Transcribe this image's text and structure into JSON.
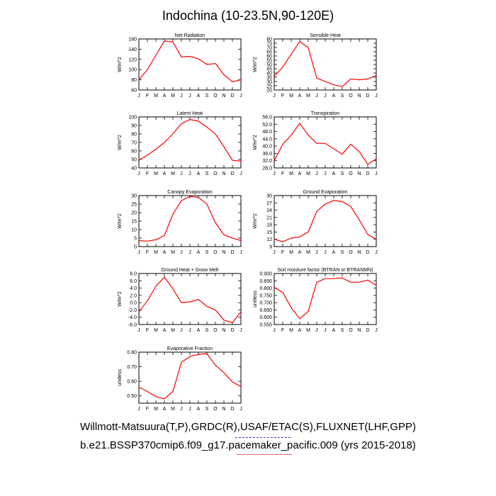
{
  "title": "Indochina (10-23.5N,90-120E)",
  "footer": {
    "line1": "Willmott-Matsuura(T,P),GRDC(R),USAF/ETAC(S),FLUXNET(LHF,GPP)",
    "line2": "b.e21.BSSP370cmip6.f09_g17.pacemaker_pacific.009 (yrs 2015-2018)"
  },
  "colors": {
    "series": "#ff0000",
    "axis": "#000000"
  },
  "chart_data": [
    {
      "type": "line",
      "title": "Net Radiation",
      "ylabel": "W/m^2",
      "categories": [
        "J",
        "F",
        "M",
        "A",
        "M",
        "J",
        "J",
        "A",
        "S",
        "O",
        "N",
        "D",
        "J"
      ],
      "ylim": [
        60,
        160
      ],
      "yticks": [
        60,
        80,
        100,
        120,
        140,
        160
      ],
      "yticklabels": [
        "60",
        "80",
        "100",
        "120",
        "140",
        "160"
      ],
      "values": [
        80,
        100,
        128,
        156,
        154,
        125,
        126,
        121,
        110,
        112,
        90,
        76,
        80
      ]
    },
    {
      "type": "line",
      "title": "Sensible Heat",
      "ylabel": "W/m^2",
      "categories": [
        "J",
        "F",
        "M",
        "A",
        "M",
        "J",
        "J",
        "A",
        "S",
        "O",
        "N",
        "D",
        "J"
      ],
      "ylim": [
        20,
        80
      ],
      "yticks": [
        20,
        25,
        30,
        35,
        40,
        45,
        50,
        55,
        60,
        65,
        70,
        75,
        80
      ],
      "yticklabels": [
        "20",
        "25",
        "30",
        "35",
        "40",
        "45",
        "50",
        "55",
        "60",
        "65",
        "70",
        "75",
        "80"
      ],
      "values": [
        36,
        47,
        62,
        77,
        70,
        34,
        30,
        26,
        24,
        33,
        32,
        33,
        37
      ]
    },
    {
      "type": "line",
      "title": "Latent Heat",
      "ylabel": "W/m^2",
      "categories": [
        "J",
        "F",
        "M",
        "A",
        "M",
        "J",
        "J",
        "A",
        "S",
        "O",
        "N",
        "D",
        "J"
      ],
      "ylim": [
        40,
        100
      ],
      "yticks": [
        40,
        50,
        60,
        70,
        80,
        90,
        100
      ],
      "yticklabels": [
        "40",
        "50",
        "60",
        "70",
        "80",
        "90",
        "100"
      ],
      "values": [
        49,
        55,
        62,
        70,
        80,
        92,
        97,
        95,
        88,
        80,
        65,
        49,
        48
      ]
    },
    {
      "type": "line",
      "title": "Transpiration",
      "ylabel": "W/m^2",
      "categories": [
        "J",
        "F",
        "M",
        "A",
        "M",
        "J",
        "J",
        "A",
        "S",
        "O",
        "N",
        "D",
        "J"
      ],
      "ylim": [
        28,
        56
      ],
      "yticks": [
        28,
        32,
        36,
        40,
        44,
        48,
        52,
        56
      ],
      "yticklabels": [
        "28.0",
        "32.0",
        "36.0",
        "40.0",
        "44.0",
        "48.0",
        "52.0",
        "56.0"
      ],
      "values": [
        32,
        41,
        46,
        52.5,
        46,
        41.5,
        41.5,
        38.5,
        35.5,
        41,
        37,
        30,
        33
      ]
    },
    {
      "type": "line",
      "title": "Canopy Evaporation",
      "ylabel": "W/m^2",
      "categories": [
        "J",
        "F",
        "M",
        "A",
        "M",
        "J",
        "J",
        "A",
        "S",
        "O",
        "N",
        "D",
        "J"
      ],
      "ylim": [
        0,
        30
      ],
      "yticks": [
        0,
        5,
        10,
        15,
        20,
        25,
        30
      ],
      "yticklabels": [
        "0",
        "5",
        "10",
        "15",
        "20",
        "25",
        "30"
      ],
      "values": [
        3.5,
        3.2,
        4,
        6.5,
        19,
        27,
        29.5,
        29,
        25,
        14,
        7,
        5,
        3.5
      ]
    },
    {
      "type": "line",
      "title": "Ground Evaporation",
      "ylabel": "W/m^2",
      "categories": [
        "J",
        "F",
        "M",
        "A",
        "M",
        "J",
        "J",
        "A",
        "S",
        "O",
        "N",
        "D",
        "J"
      ],
      "ylim": [
        9,
        30
      ],
      "yticks": [
        9,
        12,
        15,
        18,
        21,
        24,
        27,
        30
      ],
      "yticklabels": [
        "9",
        "12",
        "15",
        "18",
        "21",
        "24",
        "27",
        "30"
      ],
      "values": [
        12,
        11,
        12.5,
        13,
        15,
        23.5,
        26.5,
        28,
        27.5,
        25.5,
        20,
        14,
        12
      ]
    },
    {
      "type": "line",
      "title": "Ground Heat + Snow Melt",
      "ylabel": "W/m^2",
      "categories": [
        "J",
        "F",
        "M",
        "A",
        "M",
        "J",
        "J",
        "A",
        "S",
        "O",
        "N",
        "D",
        "J"
      ],
      "ylim": [
        -6,
        8
      ],
      "yticks": [
        -6,
        -4,
        -2,
        0,
        2,
        4,
        6,
        8
      ],
      "yticklabels": [
        "-6.0",
        "-4.0",
        "-2.0",
        "0.0",
        "2.0",
        "4.0",
        "6.0",
        "8.0"
      ],
      "values": [
        -2.5,
        0.5,
        4.5,
        7,
        3.8,
        0,
        0.2,
        0.9,
        -1,
        -2,
        -4.8,
        -5.5,
        -2.5
      ]
    },
    {
      "type": "line",
      "title": "Soil moisture factor (BTRAN or BTRANMN)",
      "ylabel": "unitless",
      "categories": [
        "J",
        "F",
        "M",
        "A",
        "M",
        "J",
        "J",
        "A",
        "S",
        "O",
        "N",
        "D",
        "J"
      ],
      "ylim": [
        0.55,
        0.9
      ],
      "yticks": [
        0.55,
        0.6,
        0.65,
        0.7,
        0.75,
        0.8,
        0.85,
        0.9
      ],
      "yticklabels": [
        "0.550",
        "0.600",
        "0.650",
        "0.700",
        "0.750",
        "0.800",
        "0.850",
        "0.900"
      ],
      "values": [
        0.805,
        0.77,
        0.665,
        0.59,
        0.64,
        0.84,
        0.865,
        0.865,
        0.87,
        0.84,
        0.84,
        0.855,
        0.82
      ]
    },
    {
      "type": "line",
      "title": "Evaporative Fraction",
      "ylabel": "unitless",
      "categories": [
        "J",
        "F",
        "M",
        "A",
        "M",
        "J",
        "J",
        "A",
        "S",
        "O",
        "N",
        "D",
        "J"
      ],
      "ylim": [
        0.45,
        0.8
      ],
      "yticks": [
        0.5,
        0.6,
        0.7,
        0.8
      ],
      "yticklabels": [
        "0.50",
        "0.60",
        "0.70",
        "0.80"
      ],
      "values": [
        0.56,
        0.53,
        0.495,
        0.48,
        0.53,
        0.73,
        0.77,
        0.785,
        0.79,
        0.71,
        0.66,
        0.595,
        0.565
      ]
    }
  ]
}
